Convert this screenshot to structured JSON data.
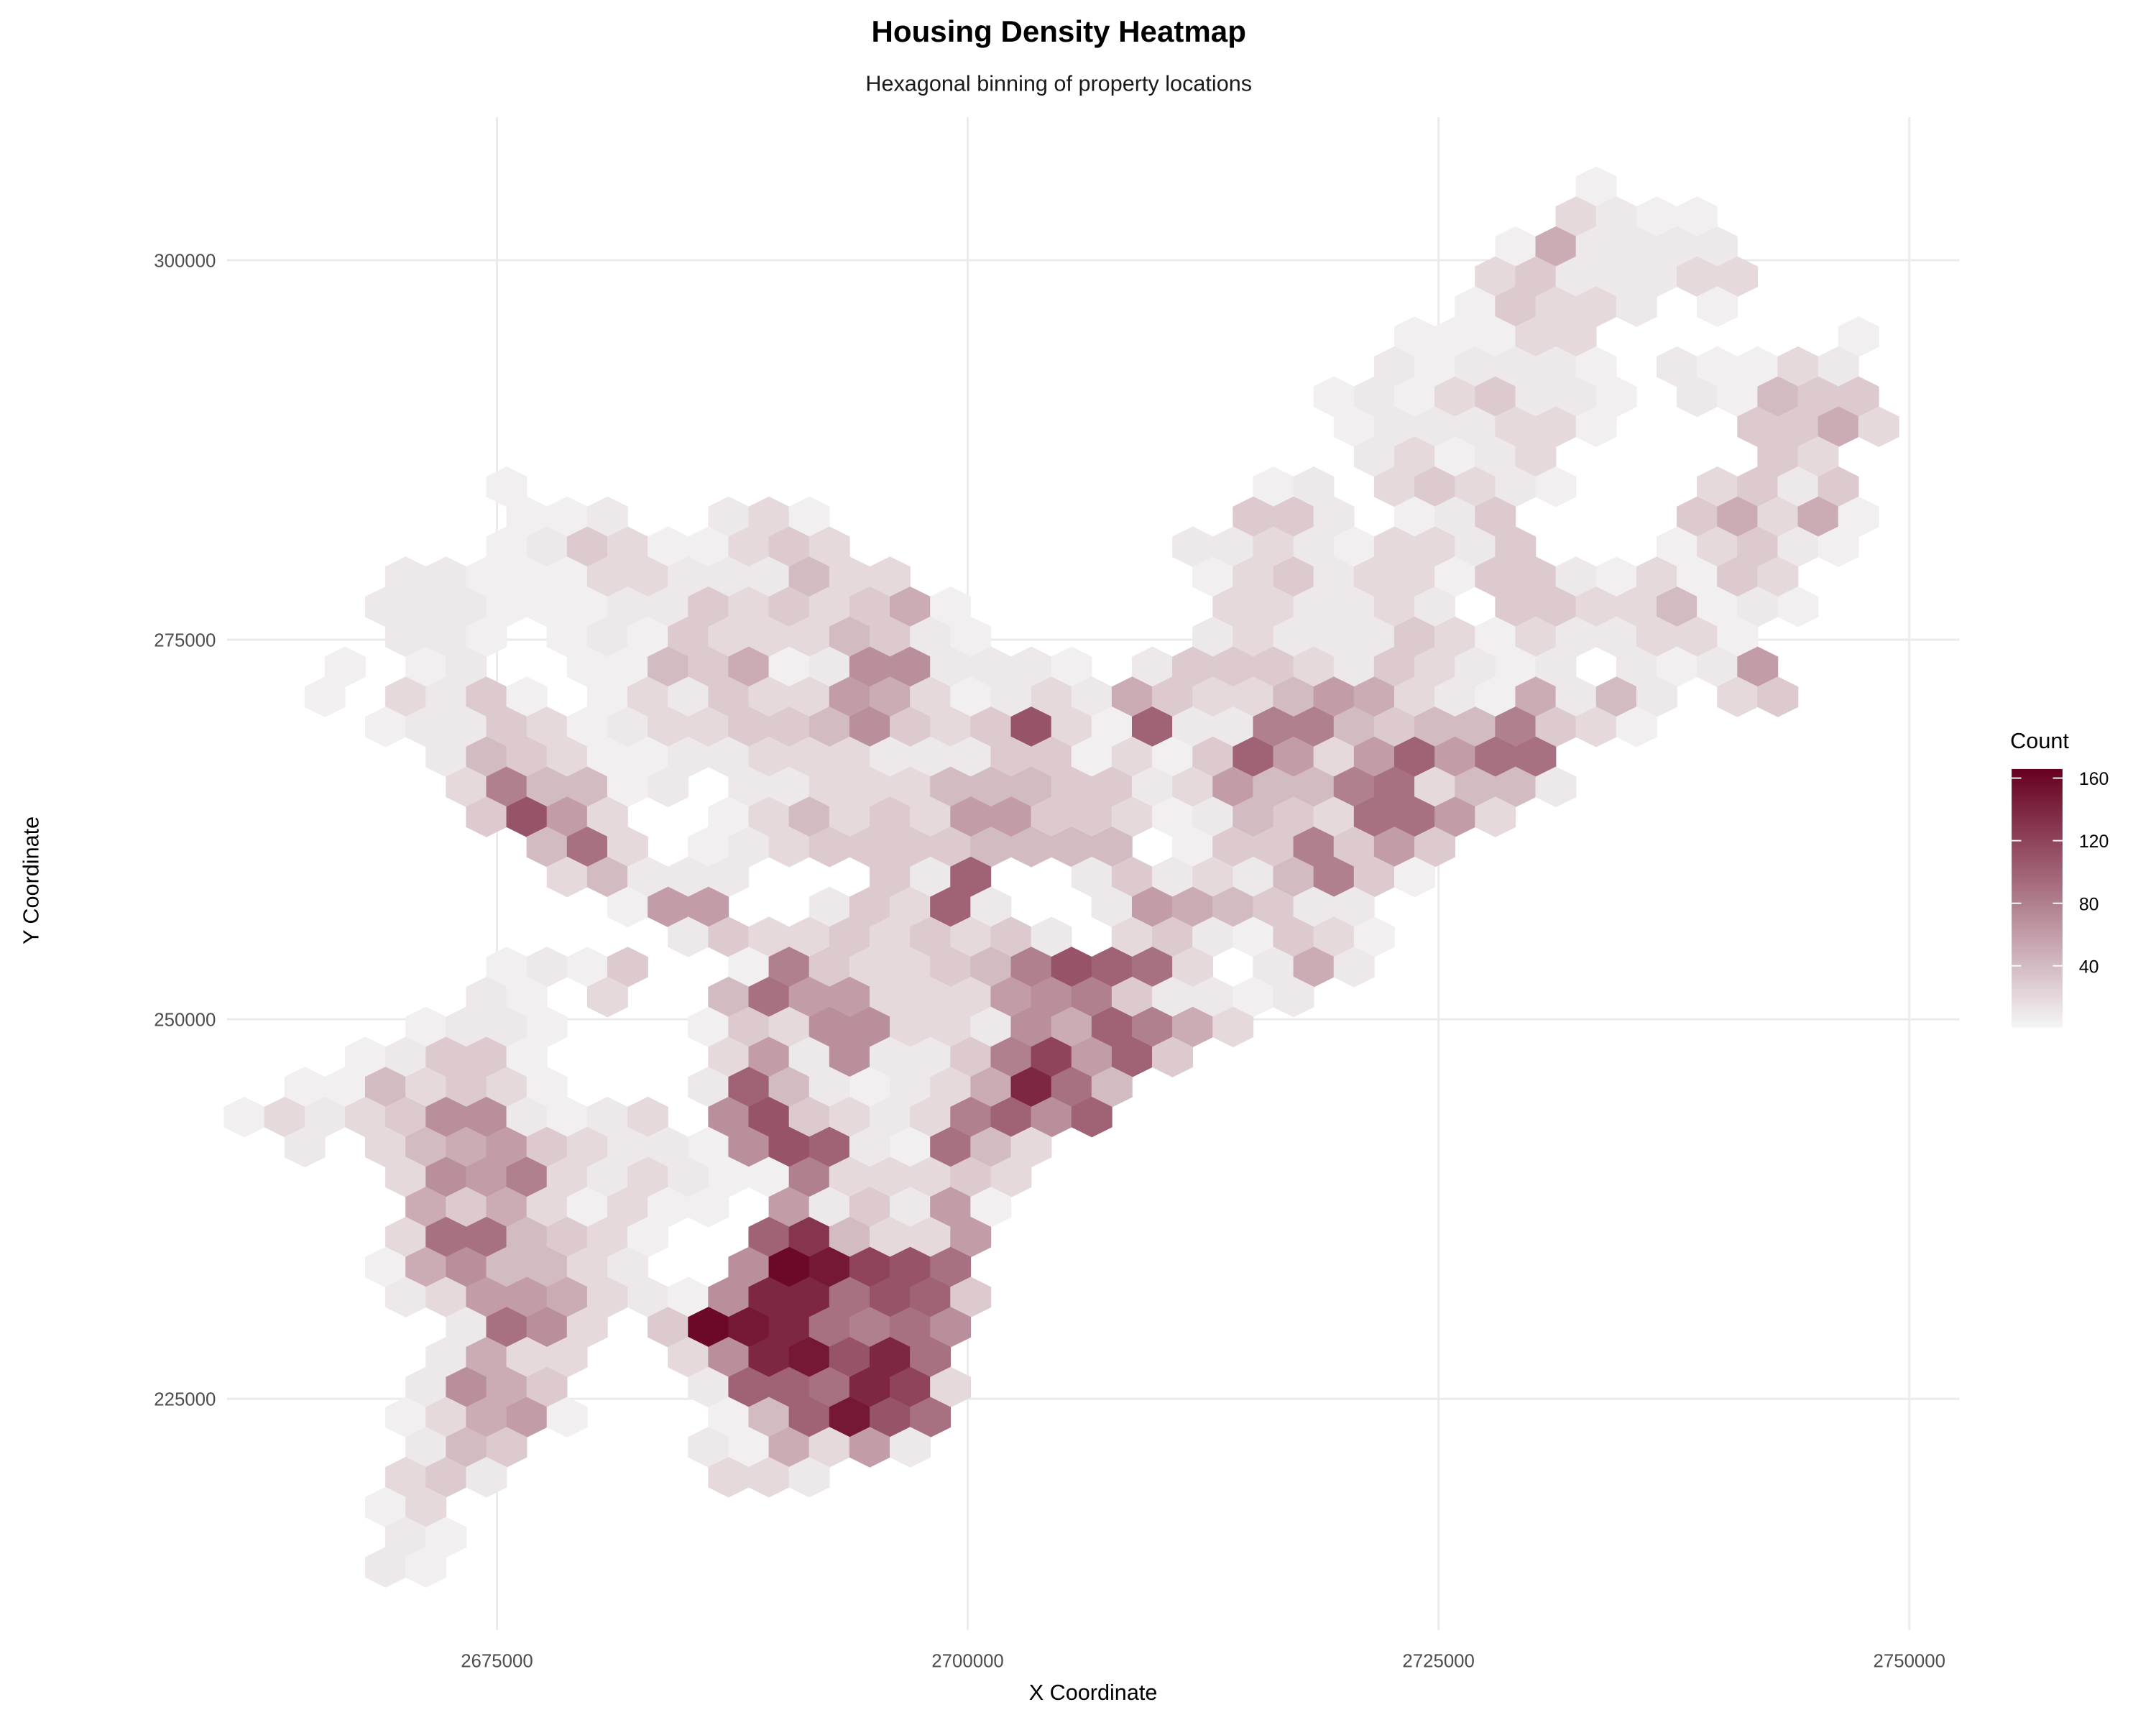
{
  "chart_data": {
    "type": "heatmap",
    "subtype": "hexbin",
    "title": "Housing Density Heatmap",
    "subtitle": "Hexagonal binning of property locations",
    "xlabel": "X Coordinate",
    "ylabel": "Y Coordinate",
    "x_ticks": [
      "2675000",
      "2700000",
      "2725000",
      "2750000"
    ],
    "y_ticks": [
      "300000",
      "275000",
      "250000",
      "225000"
    ],
    "xlim": [
      2660600,
      2752600
    ],
    "ylim": [
      209800,
      309400
    ],
    "grid": true,
    "legend": {
      "title": "Count",
      "position": "right",
      "ticks": [
        "160",
        "120",
        "80",
        "40"
      ],
      "range": [
        1,
        166
      ],
      "low_color": "#F5F5F5",
      "high_color": "#67001F"
    },
    "hex_grid": {
      "x0": 2660514,
      "dx": 2143,
      "y0": 304846,
      "dy": 1977,
      "odd_row_offset": 0.5,
      "level_unit": 10,
      "level_zero_count": 5,
      "encoding": "each row = [first column index, levels]; '.' = empty bin; level chars base-36 (0-9, a=10 ... g=16); count ≈ level x 10",
      "rows": [
        [
          34,
          "0"
        ],
        [
          33,
          "2100"
        ],
        [
          32,
          "051111"
        ],
        [
          31,
          "2311122"
        ],
        [
          31,
          "03221.0"
        ],
        [
          29,
          "00022......0"
        ],
        [
          29,
          "101110.10021"
        ],
        [
          27,
          "01023110.10433"
        ],
        [
          28,
          "0111220...3352"
        ],
        [
          28,
          "12012.....32"
        ],
        [
          7,
          "0..................01.23210...2313"
        ],
        [
          7,
          "001..120..........331.013....35250"
        ],
        [
          7,
          "013200232........112102213...02310"
        ],
        [
          4,
          "1100022111422.......023122033102032"
        ],
        [
          4,
          "111000113232350......221121.33224010"
        ],
        [
          4,
          "110.01032224310.....12111320211220"
        ],
        [
          3,
          "0.01..0043501771110.13332132101.1016"
        ],
        [
          2,
          "0.2130.021322652012153224652105141.23"
        ],
        [
          4,
          "0113201223347323b20a118843448320"
        ],
        [
          5,
          "14320011222111330203a626a699"
        ],
        [
          6,
          "284401.112224443312644892441"
        ],
        [
          6,
          "3b62..02423266332014329962"
        ],
        [
          8,
          "492.01233334444.0338363"
        ],
        [
          8,
          "24111...31a..131214830"
        ],
        [
          10,
          "066..132a1..1654311"
        ],
        [
          11,
          "1322323231.2310320"
        ],
        [
          7,
          "0103..08322348ba92.151"
        ],
        [
          6,
          "10.2..496622267831101"
        ],
        [
          5,
          "0110...0327722175a852"
        ],
        [
          3,
          "01330....26171138c6a3"
        ],
        [
          2,
          "0042320...1a410125e94"
        ],
        [
          0,
          "02123771012.7b32128a7a"
        ],
        [
          2,
          "1.2456321107ba10942"
        ],
        [
          4,
          "2768212100822232"
        ],
        [
          5,
          "53520200.613160"
        ],
        [
          4,
          "2994320..ad4226"
        ],
        [
          4,
          "0574421..7gfcb9"
        ],
        [
          4,
          "126652107ee9ba3"
        ],
        [
          6,
          "1972.3gfe9897"
        ],
        [
          5,
          "1522..27efbe9"
        ],
        [
          5,
          "1753...1aa9ec2"
        ],
        [
          4,
          "02560...04afb9"
        ],
        [
          5,
          "143....105261"
        ],
        [
          4,
          "231.....221"
        ],
        [
          4,
          "02"
        ],
        [
          4,
          "10"
        ],
        [
          4,
          "10"
        ]
      ]
    }
  }
}
